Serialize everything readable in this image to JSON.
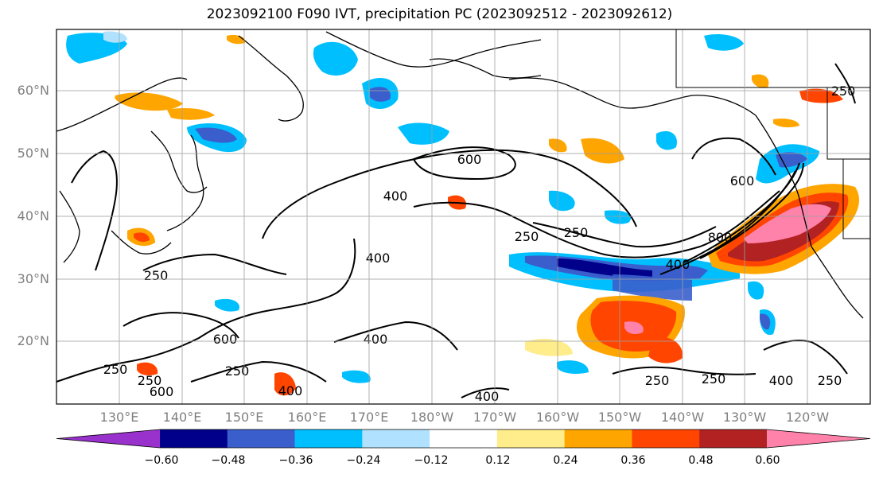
{
  "title": "2023092100 F090 IVT, precipitation PC (2023092512 - 2023092612)",
  "map": {
    "lat_labels": [
      "60°N",
      "50°N",
      "40°N",
      "30°N",
      "20°N"
    ],
    "lon_labels": [
      "130°E",
      "140°E",
      "150°E",
      "160°E",
      "170°E",
      "180°W",
      "170°W",
      "160°W",
      "150°W",
      "140°W",
      "130°W",
      "120°W"
    ],
    "grid": true,
    "contour_labels": [
      "600",
      "400",
      "250",
      "250",
      "400",
      "800",
      "400",
      "600",
      "250",
      "250",
      "400",
      "250",
      "600",
      "600",
      "250",
      "400",
      "400",
      "250",
      "250",
      "400",
      "250",
      "250"
    ]
  },
  "colorbar": {
    "tick_labels": [
      "−0.60",
      "−0.48",
      "−0.36",
      "−0.24",
      "−0.12",
      "0.12",
      "0.24",
      "0.36",
      "0.48",
      "0.60"
    ],
    "colors": [
      "#9932cc",
      "#00008b",
      "#3a5fcd",
      "#00bfff",
      "#b0e2ff",
      "#ffffff",
      "#ffec8b",
      "#ffa500",
      "#ff4500",
      "#b22222",
      "#ff82ab"
    ]
  },
  "colors": {
    "contour": "#000000",
    "coast": "#000000",
    "grid": "#a0a0a0"
  }
}
